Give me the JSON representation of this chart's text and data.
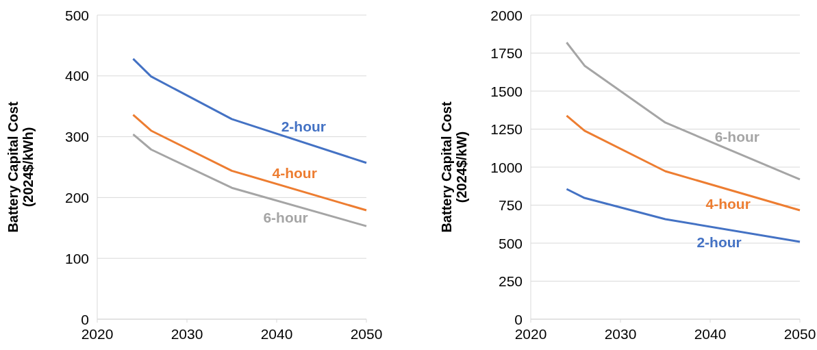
{
  "chart_data": [
    {
      "type": "line",
      "ylabel": "Battery Capital Cost\n(2024$/kWh)",
      "xlim": [
        2020,
        2050
      ],
      "xticks": [
        2020,
        2030,
        2040,
        2050
      ],
      "ylim": [
        0,
        500
      ],
      "yticks": [
        0,
        100,
        200,
        300,
        400,
        500
      ],
      "grid": "y",
      "marker": "none",
      "line_style": "solid",
      "series": [
        {
          "name": "2-hour",
          "color": "#4472c4",
          "x": [
            2024,
            2026,
            2035,
            2050
          ],
          "values": [
            428,
            399,
            329,
            257
          ]
        },
        {
          "name": "4-hour",
          "color": "#ed7d31",
          "x": [
            2024,
            2026,
            2035,
            2050
          ],
          "values": [
            336,
            310,
            244,
            179
          ]
        },
        {
          "name": "6-hour",
          "color": "#a5a5a5",
          "x": [
            2024,
            2026,
            2035,
            2050
          ],
          "values": [
            304,
            279,
            216,
            153
          ]
        }
      ]
    },
    {
      "type": "line",
      "ylabel": "Battery Capital Cost\n(2024$/kW)",
      "xlim": [
        2020,
        2050
      ],
      "xticks": [
        2020,
        2030,
        2040,
        2050
      ],
      "ylim": [
        0,
        2000
      ],
      "yticks": [
        0,
        250,
        500,
        750,
        1000,
        1250,
        1500,
        1750,
        2000
      ],
      "grid": "y",
      "marker": "none",
      "line_style": "solid",
      "series": [
        {
          "name": "6-hour",
          "color": "#a5a5a5",
          "x": [
            2024,
            2026,
            2035,
            2050
          ],
          "values": [
            1820,
            1667,
            1293,
            919
          ]
        },
        {
          "name": "4-hour",
          "color": "#ed7d31",
          "x": [
            2024,
            2026,
            2035,
            2050
          ],
          "values": [
            1338,
            1239,
            973,
            716
          ]
        },
        {
          "name": "2-hour",
          "color": "#4472c4",
          "x": [
            2024,
            2026,
            2035,
            2050
          ],
          "values": [
            856,
            797,
            658,
            509
          ]
        }
      ]
    }
  ]
}
